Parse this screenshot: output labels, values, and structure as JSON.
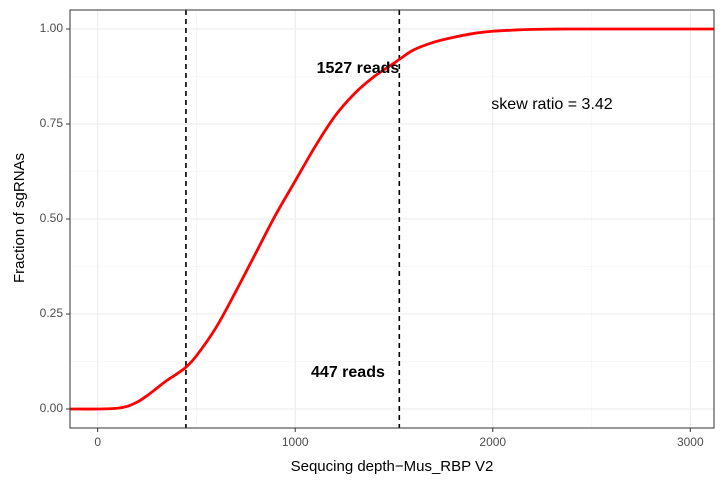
{
  "chart_data": {
    "type": "line",
    "xlabel": "Sequcing depth−Mus_RBP V2",
    "ylabel": "Fraction of sgRNAs",
    "xlim": [
      -140,
      3120
    ],
    "ylim": [
      -0.05,
      1.05
    ],
    "x_ticks": [
      0,
      1000,
      2000,
      3000
    ],
    "x_tick_labels": [
      "0",
      "1000",
      "2000",
      "3000"
    ],
    "y_ticks": [
      0,
      0.25,
      0.5,
      0.75,
      1.0
    ],
    "y_tick_labels": [
      "0.00",
      "0.25",
      "0.50",
      "0.75",
      "1.00"
    ],
    "grid": true,
    "series": [
      {
        "color": "#ff0000",
        "x": [
          -140,
          0,
          100,
          150,
          200,
          250,
          300,
          350,
          400,
          447,
          500,
          600,
          700,
          800,
          900,
          1000,
          1100,
          1200,
          1300,
          1400,
          1500,
          1527,
          1600,
          1700,
          1800,
          1900,
          2000,
          2100,
          2200,
          2400,
          2600,
          3000,
          3120
        ],
        "y": [
          0,
          0,
          0.002,
          0.007,
          0.018,
          0.035,
          0.055,
          0.075,
          0.092,
          0.11,
          0.14,
          0.215,
          0.31,
          0.41,
          0.51,
          0.6,
          0.69,
          0.77,
          0.83,
          0.875,
          0.91,
          0.92,
          0.945,
          0.965,
          0.978,
          0.988,
          0.994,
          0.997,
          0.999,
          1.0,
          1.0,
          1.0,
          1.0
        ]
      }
    ],
    "vlines": [
      {
        "x": 447,
        "style": "dashed",
        "color": "#000000"
      },
      {
        "x": 1527,
        "style": "dashed",
        "color": "#000000"
      }
    ],
    "annotations": [
      {
        "text": "1527 reads",
        "x": 1527,
        "y": 0.895,
        "anchor": "end",
        "bold": true
      },
      {
        "text": "447 reads",
        "x": 1454,
        "y": 0.095,
        "anchor": "end",
        "bold": true
      },
      {
        "text": "skew ratio = 3.42",
        "x": 2300,
        "y": 0.8,
        "anchor": "middle",
        "bold": false
      }
    ]
  }
}
